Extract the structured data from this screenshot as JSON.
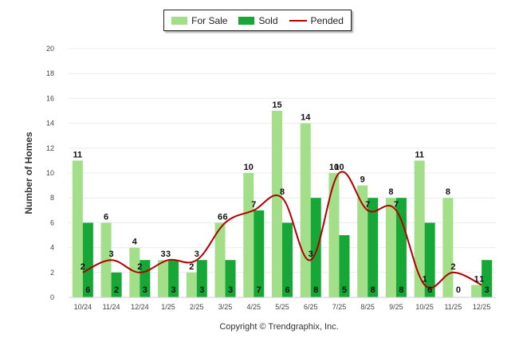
{
  "chart_data": {
    "type": "bar",
    "title": "",
    "xlabel": "",
    "ylabel": "Number of Homes",
    "ylim": [
      0,
      20
    ],
    "yticks": [
      0,
      2,
      4,
      6,
      8,
      10,
      12,
      14,
      16,
      18,
      20
    ],
    "grid": true,
    "legend_position": "top-center",
    "categories": [
      "10/24",
      "11/24",
      "12/24",
      "1/25",
      "2/25",
      "3/25",
      "4/25",
      "5/25",
      "6/25",
      "7/25",
      "8/25",
      "9/25",
      "10/25",
      "11/25",
      "12/25"
    ],
    "series": [
      {
        "name": "For Sale",
        "kind": "bar",
        "color": "#a3df88",
        "values": [
          11,
          6,
          4,
          3,
          2,
          6,
          10,
          15,
          14,
          10,
          9,
          8,
          11,
          8,
          1
        ]
      },
      {
        "name": "Sold",
        "kind": "bar",
        "color": "#17a737",
        "values": [
          6,
          2,
          3,
          3,
          3,
          3,
          7,
          6,
          8,
          5,
          8,
          8,
          6,
          0,
          3
        ]
      },
      {
        "name": "Pended",
        "kind": "line",
        "color": "#b00000",
        "values": [
          2,
          3,
          2,
          3,
          3,
          6,
          7,
          8,
          3,
          10,
          7,
          7,
          1,
          2,
          1
        ]
      }
    ]
  },
  "footer": {
    "copyright": "Copyright © Trendgraphix, Inc."
  }
}
